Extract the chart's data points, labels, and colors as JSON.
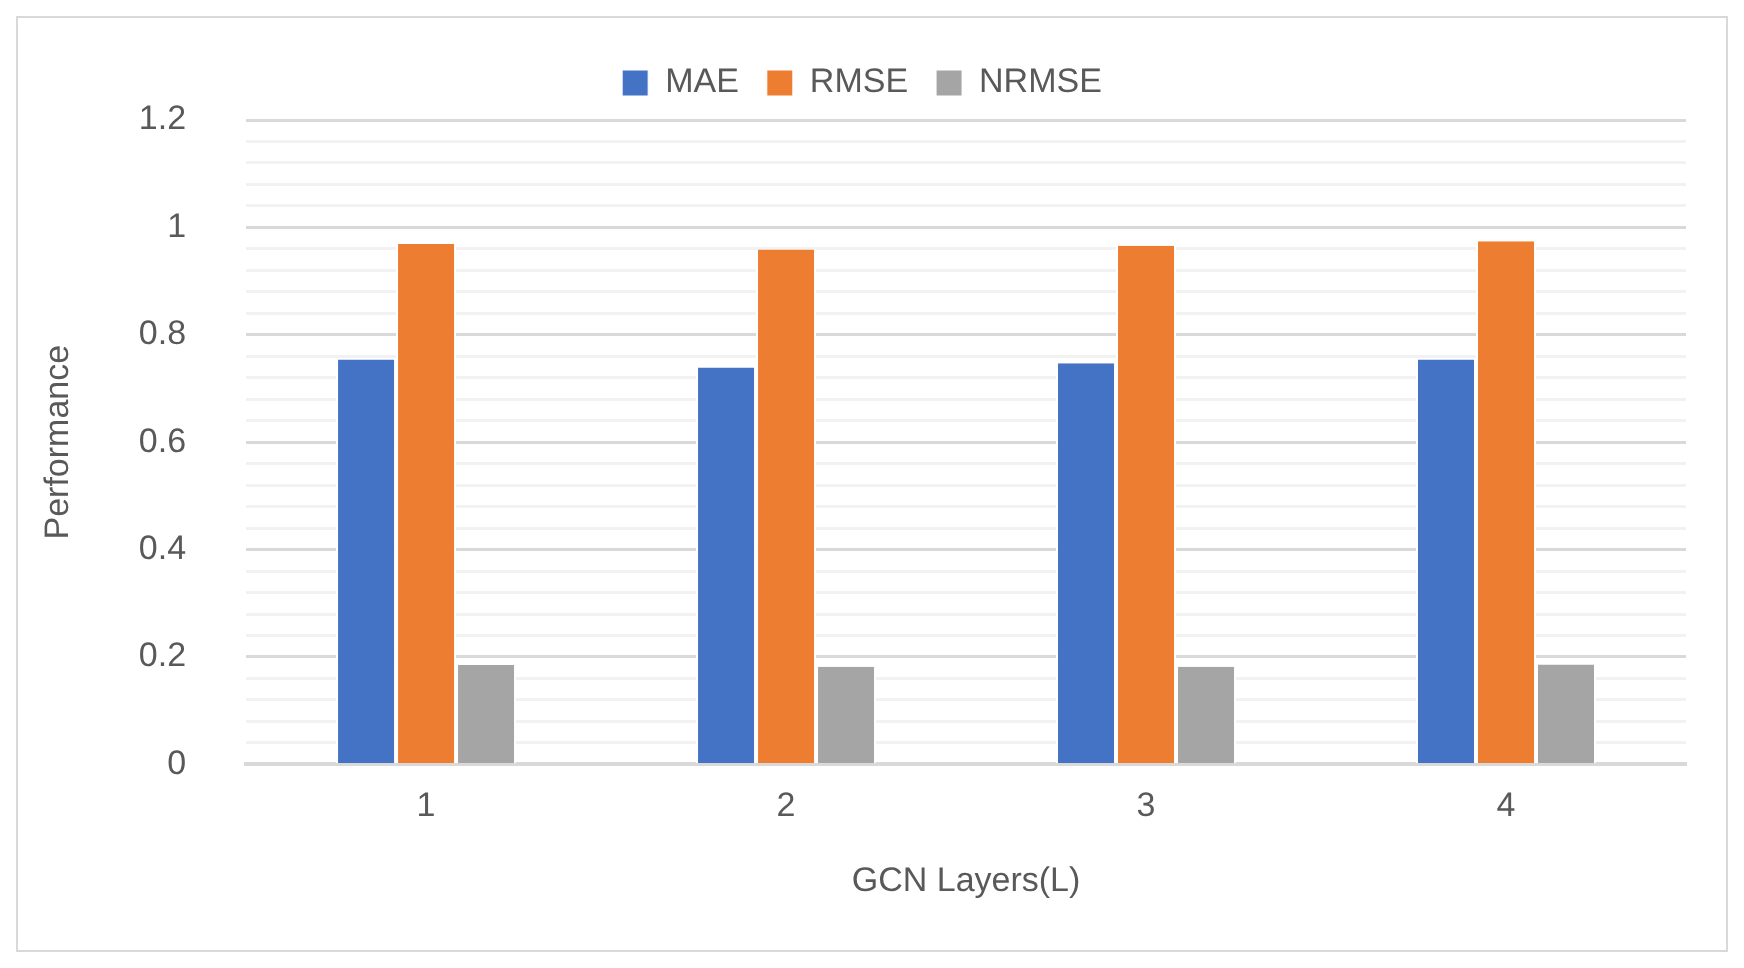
{
  "chart_data": {
    "type": "bar",
    "xlabel": "GCN Layers(L)",
    "ylabel": "Performance",
    "categories": [
      "1",
      "2",
      "3",
      "4"
    ],
    "series": [
      {
        "name": "MAE",
        "color": "#4472c4",
        "values": [
          0.754,
          0.739,
          0.747,
          0.754
        ]
      },
      {
        "name": "RMSE",
        "color": "#ed7d31",
        "values": [
          0.969,
          0.959,
          0.966,
          0.974
        ]
      },
      {
        "name": "NRMSE",
        "color": "#a5a5a5",
        "values": [
          0.185,
          0.182,
          0.182,
          0.186
        ]
      }
    ],
    "ylim": [
      0,
      1.2
    ],
    "yticks": [
      0,
      {
        "value": 0.04,
        "label": null
      },
      {
        "value": 0.08,
        "label": null
      },
      {
        "value": 0.12,
        "label": null
      },
      {
        "value": 0.16,
        "label": null
      },
      0.2,
      {
        "value": 0.24,
        "label": null
      },
      {
        "value": 0.28,
        "label": null
      },
      {
        "value": 0.32,
        "label": null
      },
      {
        "value": 0.36,
        "label": null
      },
      0.4,
      {
        "value": 0.44,
        "label": null
      },
      {
        "value": 0.48,
        "label": null
      },
      {
        "value": 0.52,
        "label": null
      },
      {
        "value": 0.56,
        "label": null
      },
      0.6,
      {
        "value": 0.64,
        "label": null
      },
      {
        "value": 0.68,
        "label": null
      },
      {
        "value": 0.72,
        "label": null
      },
      {
        "value": 0.76,
        "label": null
      },
      0.8,
      {
        "value": 0.84,
        "label": null
      },
      {
        "value": 0.88,
        "label": null
      },
      {
        "value": 0.92,
        "label": null
      },
      {
        "value": 0.96,
        "label": null
      },
      1,
      {
        "value": 1.04,
        "label": null
      },
      {
        "value": 1.08,
        "label": null
      },
      {
        "value": 1.12,
        "label": null
      },
      {
        "value": 1.16,
        "label": null
      },
      1.2
    ],
    "grid": "y",
    "legend": "top"
  }
}
